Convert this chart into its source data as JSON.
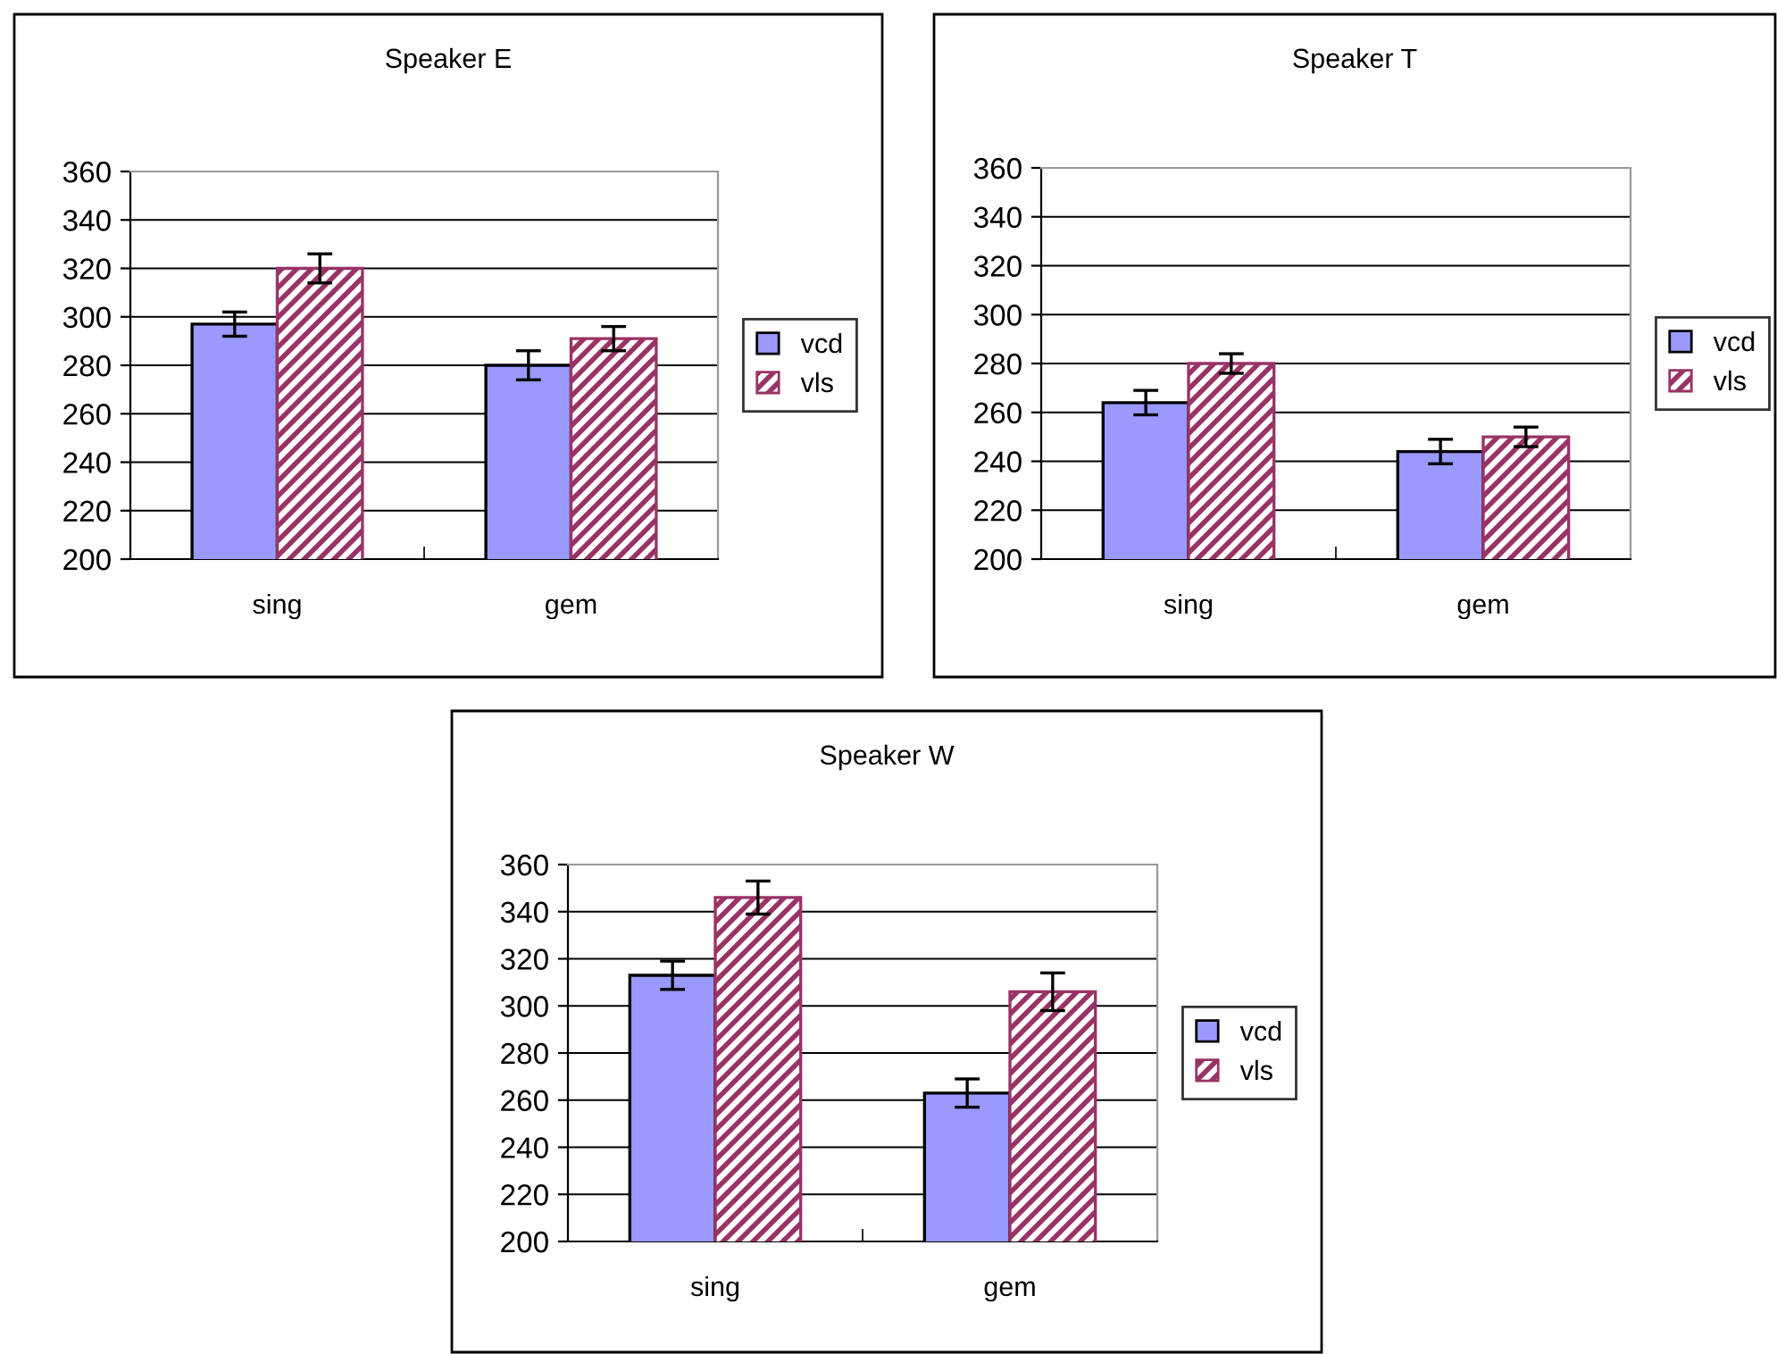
{
  "chart_data": [
    {
      "type": "bar",
      "title": "Speaker E",
      "categories": [
        "sing",
        "gem"
      ],
      "ylim": [
        200,
        360
      ],
      "yticks": [
        200,
        220,
        240,
        260,
        280,
        300,
        320,
        340,
        360
      ],
      "grid": "y",
      "legend": "right",
      "series": [
        {
          "name": "vcd",
          "color": "#9999ff",
          "values": [
            297,
            280
          ],
          "errors": [
            5,
            6
          ]
        },
        {
          "name": "vls",
          "color": "#993366",
          "values": [
            320,
            291
          ],
          "errors": [
            6,
            5
          ]
        }
      ]
    },
    {
      "type": "bar",
      "title": "Speaker T",
      "categories": [
        "sing",
        "gem"
      ],
      "ylim": [
        200,
        360
      ],
      "yticks": [
        200,
        220,
        240,
        260,
        280,
        300,
        320,
        340,
        360
      ],
      "grid": "y",
      "legend": "right",
      "series": [
        {
          "name": "vcd",
          "color": "#9999ff",
          "values": [
            264,
            244
          ],
          "errors": [
            5,
            5
          ]
        },
        {
          "name": "vls",
          "color": "#993366",
          "values": [
            280,
            250
          ],
          "errors": [
            4,
            4
          ]
        }
      ]
    },
    {
      "type": "bar",
      "title": "Speaker W",
      "categories": [
        "sing",
        "gem"
      ],
      "ylim": [
        200,
        360
      ],
      "yticks": [
        200,
        220,
        240,
        260,
        280,
        300,
        320,
        340,
        360
      ],
      "grid": "y",
      "legend": "right",
      "series": [
        {
          "name": "vcd",
          "color": "#9999ff",
          "values": [
            313,
            263
          ],
          "errors": [
            6,
            6
          ]
        },
        {
          "name": "vls",
          "color": "#993366",
          "values": [
            346,
            306
          ],
          "errors": [
            7,
            8
          ]
        }
      ]
    }
  ]
}
